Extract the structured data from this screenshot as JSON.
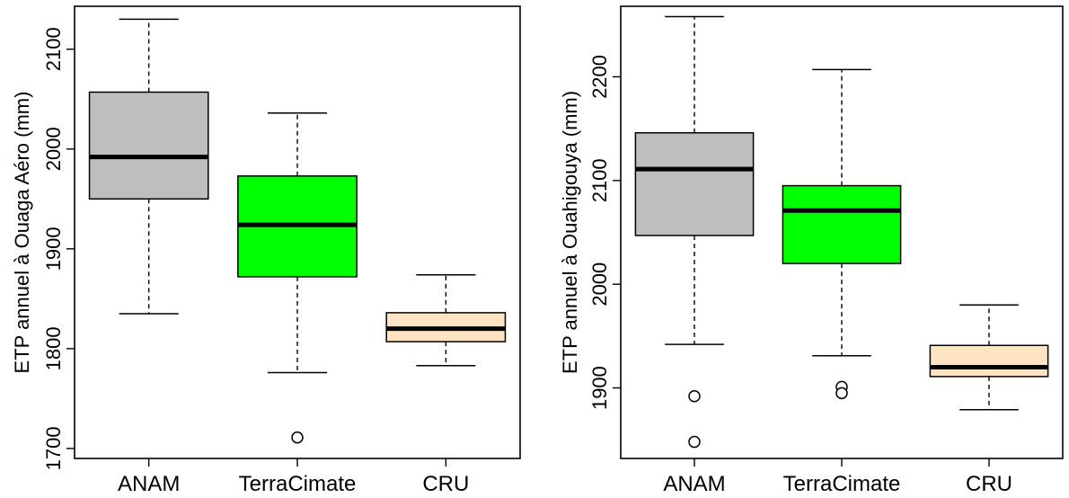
{
  "chart_data": [
    {
      "type": "box",
      "ylabel": "ETP annuel à Ouaga Aéro (mm)",
      "ylim": [
        1690,
        2143
      ],
      "yticks": [
        "1700",
        "1800",
        "1900",
        "2000",
        "2100"
      ],
      "categories": [
        "ANAM",
        "TerraCimate",
        "CRU"
      ],
      "boxes": [
        {
          "whisker_low": 1835,
          "q1": 1950,
          "median": 1992,
          "q3": 2057,
          "whisker_high": 2130,
          "outliers": [],
          "color": "#bebebe"
        },
        {
          "whisker_low": 1776,
          "q1": 1872,
          "median": 1924,
          "q3": 1973,
          "whisker_high": 2036,
          "outliers": [
            1711
          ],
          "color": "#00ff00"
        },
        {
          "whisker_low": 1783,
          "q1": 1807,
          "median": 1820,
          "q3": 1836,
          "whisker_high": 1874,
          "outliers": [],
          "color": "#ffe4c4"
        }
      ]
    },
    {
      "type": "box",
      "ylabel": "ETP annuel à Ouahigouya (mm)",
      "ylim": [
        1832,
        2268
      ],
      "yticks": [
        "1900",
        "2000",
        "2100",
        "2200"
      ],
      "categories": [
        "ANAM",
        "TerraCimate",
        "CRU"
      ],
      "boxes": [
        {
          "whisker_low": 1942,
          "q1": 2047,
          "median": 2111,
          "q3": 2146,
          "whisker_high": 2258,
          "outliers": [
            1892,
            1848
          ],
          "color": "#bebebe"
        },
        {
          "whisker_low": 1931,
          "q1": 2020,
          "median": 2071,
          "q3": 2095,
          "whisker_high": 2207,
          "outliers": [
            1901,
            1895
          ],
          "color": "#00ff00"
        },
        {
          "whisker_low": 1879,
          "q1": 1911,
          "median": 1920,
          "q3": 1941,
          "whisker_high": 1980,
          "outliers": [],
          "color": "#ffe4c4"
        }
      ]
    }
  ]
}
